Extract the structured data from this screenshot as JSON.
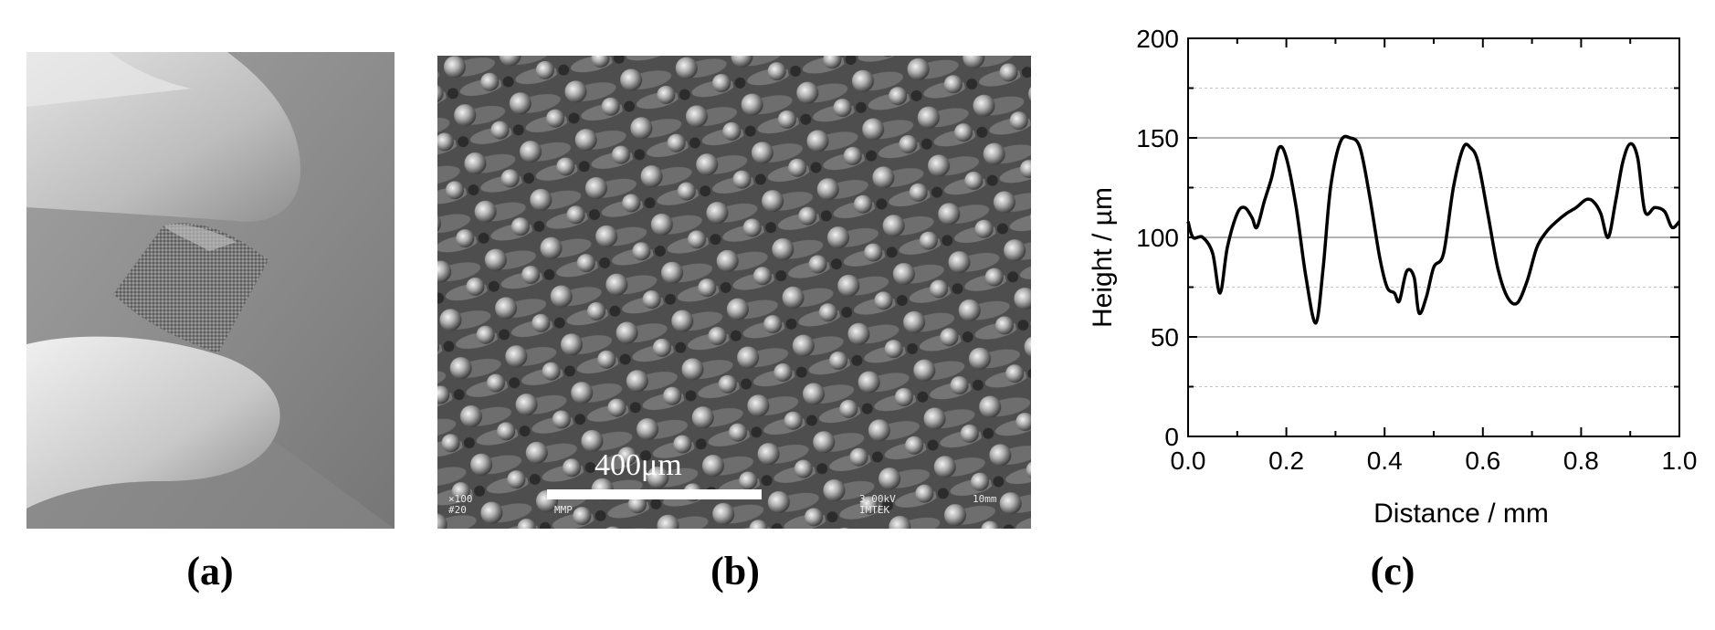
{
  "figure": {
    "captions": {
      "a": "(a)",
      "b": "(b)",
      "c": "(c)"
    },
    "panel_b": {
      "scale_bar_label": "400μm",
      "sem_info": {
        "left_line1": "×100",
        "left_line2": "#20",
        "mid_line1": "",
        "mid_line2": "MMP",
        "right_line1": "3.00kV",
        "right_line2": "IMTEK",
        "far_right": "10mm"
      }
    }
  },
  "chart_data": {
    "type": "line",
    "xlabel": "Distance / mm",
    "ylabel": "Height / µm",
    "xlim": [
      0.0,
      1.0
    ],
    "ylim": [
      0,
      200
    ],
    "x_ticks": [
      "0.0",
      "0.2",
      "0.4",
      "0.6",
      "0.8",
      "1.0"
    ],
    "y_ticks": [
      "0",
      "50",
      "100",
      "150",
      "200"
    ],
    "grid": "major solid, minor dashed (horizontal)",
    "series": [
      {
        "x": [
          0.0,
          0.01,
          0.03,
          0.05,
          0.065,
          0.08,
          0.1,
          0.115,
          0.13,
          0.14,
          0.155,
          0.17,
          0.185,
          0.2,
          0.22,
          0.24,
          0.26,
          0.275,
          0.29,
          0.31,
          0.33,
          0.35,
          0.37,
          0.39,
          0.405,
          0.42,
          0.43,
          0.445,
          0.46,
          0.47,
          0.485,
          0.5,
          0.52,
          0.54,
          0.56,
          0.575,
          0.59,
          0.61,
          0.63,
          0.65,
          0.67,
          0.69,
          0.71,
          0.73,
          0.75,
          0.77,
          0.79,
          0.81,
          0.825,
          0.84,
          0.855,
          0.87,
          0.885,
          0.9,
          0.915,
          0.93,
          0.95,
          0.97,
          0.985,
          1.0
        ],
        "y": [
          108,
          100,
          100,
          92,
          72,
          95,
          112,
          115,
          110,
          105,
          118,
          130,
          145,
          140,
          115,
          80,
          57,
          85,
          125,
          148,
          150,
          145,
          120,
          90,
          75,
          72,
          68,
          83,
          80,
          62,
          70,
          85,
          92,
          125,
          145,
          145,
          138,
          112,
          85,
          70,
          67,
          78,
          95,
          103,
          108,
          112,
          115,
          119,
          118,
          112,
          100,
          118,
          138,
          147,
          140,
          113,
          115,
          113,
          105,
          108
        ]
      }
    ]
  }
}
